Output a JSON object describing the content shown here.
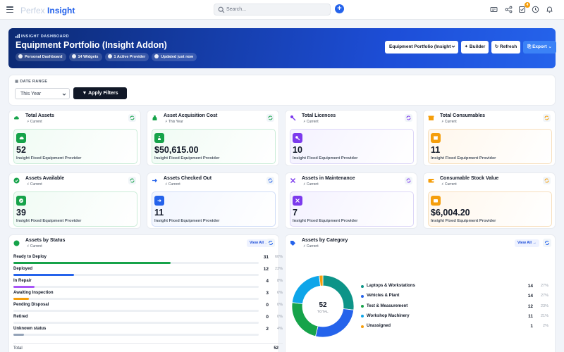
{
  "topbar": {
    "logo_part1": "Perfex",
    "logo_part2": "Insight",
    "search_placeholder": "Search...",
    "notification_count": "4"
  },
  "hero": {
    "kicker": "INSIGHT DASHBOARD",
    "title": "Equipment Portfolio (Insight Addon)",
    "chips": [
      "Personal Dashboard",
      "14 Widgets",
      "1 Active Provider",
      "Updated just now"
    ],
    "selected_dashboard": "Equipment Portfolio (Insight",
    "builder_label": "Builder",
    "refresh_label": "Refresh",
    "export_label": "Export"
  },
  "filter": {
    "label": "DATE RANGE",
    "range_value": "This Year",
    "apply_label": "Apply Filters"
  },
  "colors": {
    "green": "#16a34a",
    "blue": "#2563eb",
    "purple": "#7c3aed",
    "orange": "#f59e0b",
    "teal": "#0d9488"
  },
  "kpis": [
    {
      "title": "Total Assets",
      "sub": "Current",
      "value": "52",
      "provider": "Insight Fixed Equipment Provider",
      "theme": "green",
      "icon": "cloud-icon"
    },
    {
      "title": "Asset Acquisition Cost",
      "sub": "This Year",
      "value": "$50,615.00",
      "provider": "Insight Fixed Equipment Provider",
      "theme": "green",
      "icon": "money-bag-icon"
    },
    {
      "title": "Total Licences",
      "sub": "Current",
      "value": "10",
      "provider": "Insight Fixed Equipment Provider",
      "theme": "purple",
      "icon": "key-icon"
    },
    {
      "title": "Total Consumables",
      "sub": "Current",
      "value": "11",
      "provider": "Insight Fixed Equipment Provider",
      "theme": "orange",
      "icon": "box-icon"
    },
    {
      "title": "Assets Available",
      "sub": "Current",
      "value": "39",
      "provider": "Insight Fixed Equipment Provider",
      "theme": "green",
      "icon": "check-circle-icon"
    },
    {
      "title": "Assets Checked Out",
      "sub": "Current",
      "value": "11",
      "provider": "Insight Fixed Equipment Provider",
      "theme": "blue",
      "icon": "sign-out-icon"
    },
    {
      "title": "Assets in Maintenance",
      "sub": "Current",
      "value": "7",
      "provider": "Insight Fixed Equipment Provider",
      "theme": "purple",
      "icon": "tools-icon"
    },
    {
      "title": "Consumable Stock Value",
      "sub": "Current",
      "value": "$6,004.20",
      "provider": "Insight Fixed Equipment Provider",
      "theme": "orange",
      "icon": "wallet-icon"
    }
  ],
  "status_panel": {
    "title": "Assets by Status",
    "sub": "Current",
    "view_all": "View All",
    "rows": [
      {
        "label": "Ready to Deploy",
        "count": "31",
        "pct": "60%",
        "fraction": 0.6,
        "color": "#16a34a"
      },
      {
        "label": "Deployed",
        "count": "12",
        "pct": "23%",
        "fraction": 0.23,
        "color": "#2563eb"
      },
      {
        "label": "In Repair",
        "count": "4",
        "pct": "8%",
        "fraction": 0.08,
        "color": "#a855f7"
      },
      {
        "label": "Awaiting Inspection",
        "count": "3",
        "pct": "6%",
        "fraction": 0.06,
        "color": "#f59e0b"
      },
      {
        "label": "Pending Disposal",
        "count": "0",
        "pct": "0%",
        "fraction": 0.0,
        "color": "#9ca3af"
      },
      {
        "label": "Retired",
        "count": "0",
        "pct": "0%",
        "fraction": 0.0,
        "color": "#9ca3af"
      },
      {
        "label": "Unknown status",
        "count": "2",
        "pct": "4%",
        "fraction": 0.04,
        "color": "#94a3b8"
      }
    ],
    "total_label": "Total",
    "total_value": "52"
  },
  "category_panel": {
    "title": "Assets by Category",
    "sub": "Current",
    "view_all": "View All",
    "center_value": "52",
    "center_label": "TOTAL"
  },
  "chart_data": {
    "type": "pie",
    "title": "Assets by Category",
    "categories": [
      "Laptops & Workstations",
      "Vehicles & Plant",
      "Test & Measurement",
      "Workshop Machinery",
      "Unassigned"
    ],
    "values": [
      14,
      14,
      12,
      11,
      1
    ],
    "percentages": [
      "27%",
      "27%",
      "23%",
      "21%",
      "2%"
    ],
    "colors": [
      "#0d9488",
      "#2563eb",
      "#16a34a",
      "#0ea5e9",
      "#f59e0b"
    ],
    "legend": "right",
    "donut": true
  }
}
